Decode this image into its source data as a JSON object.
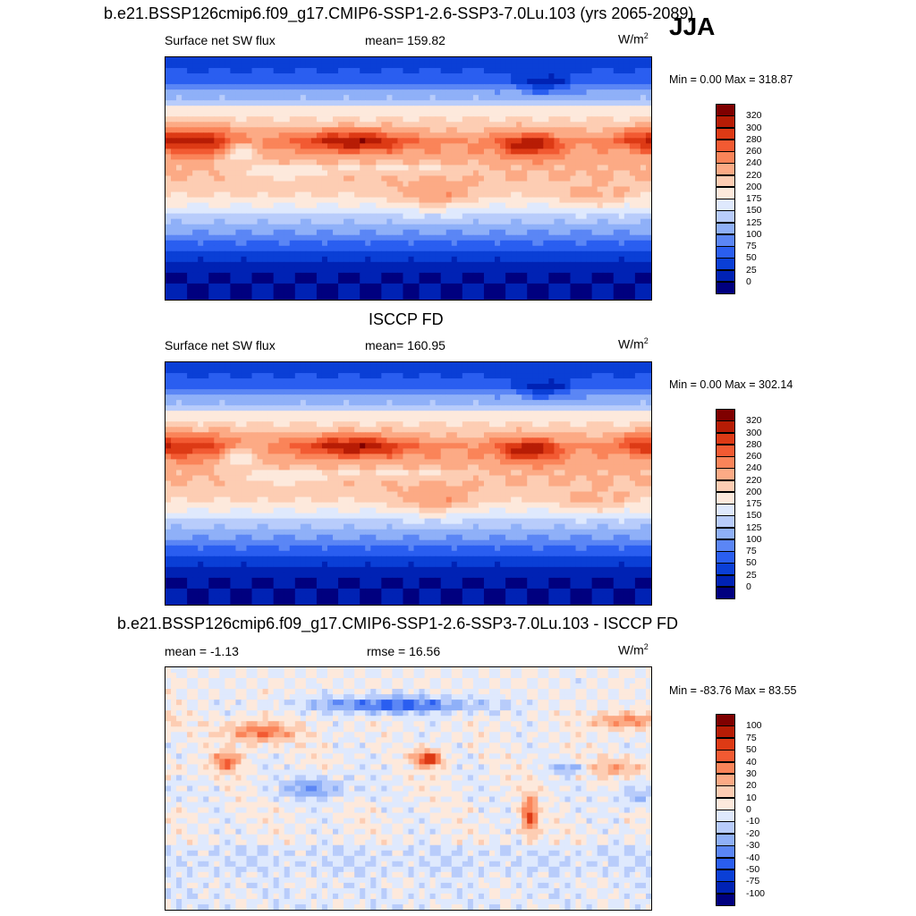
{
  "season": "JJA",
  "panels": [
    {
      "title": "b.e21.BSSP126cmip6.f09_g17.CMIP6-SSP1-2.6-SSP3-7.0Lu.103 (yrs 2065-2089)",
      "left_label": "Surface net SW flux",
      "center_label": "mean= 159.82",
      "units": "W/m",
      "units_sup": "2",
      "minmax": "Min =   0.00 Max = 318.87",
      "colorbar_labels": [
        "320",
        "300",
        "280",
        "260",
        "240",
        "220",
        "200",
        "175",
        "150",
        "125",
        "100",
        "75",
        "50",
        "25",
        "0"
      ]
    },
    {
      "title": "ISCCP FD",
      "left_label": "Surface net SW flux",
      "center_label": "mean= 160.95",
      "units": "W/m",
      "units_sup": "2",
      "minmax": "Min =   0.00 Max = 302.14",
      "colorbar_labels": [
        "320",
        "300",
        "280",
        "260",
        "240",
        "220",
        "200",
        "175",
        "150",
        "125",
        "100",
        "75",
        "50",
        "25",
        "0"
      ]
    },
    {
      "title": "b.e21.BSSP126cmip6.f09_g17.CMIP6-SSP1-2.6-SSP3-7.0Lu.103 - ISCCP FD",
      "left_label": "mean =  -1.13",
      "center_label": "rmse =  16.56",
      "units": "W/m",
      "units_sup": "2",
      "minmax": "Min = -83.76 Max =  83.55",
      "colorbar_labels": [
        "100",
        "75",
        "50",
        "40",
        "30",
        "20",
        "10",
        "0",
        "-10",
        "-20",
        "-30",
        "-40",
        "-50",
        "-75",
        "-100"
      ]
    }
  ],
  "colors": {
    "abs_scale": [
      "#00007f",
      "#0022b4",
      "#0a3fd6",
      "#2a5ef0",
      "#5b86f5",
      "#8fb0f8",
      "#b8ccfb",
      "#dfe9fd",
      "#fde9dc",
      "#fdcdb3",
      "#fcaa85",
      "#fa8459",
      "#f25a32",
      "#dd3a15",
      "#b71c05",
      "#7f0000"
    ],
    "diff_scale": [
      "#00007f",
      "#0022b4",
      "#0a3fd6",
      "#2a5ef0",
      "#5b86f5",
      "#8fb0f8",
      "#b8ccfb",
      "#dfe9fd",
      "#fde9dc",
      "#fdcdb3",
      "#fcaa85",
      "#fa8459",
      "#f25a32",
      "#dd3a15",
      "#b71c05",
      "#7f0000"
    ]
  }
}
